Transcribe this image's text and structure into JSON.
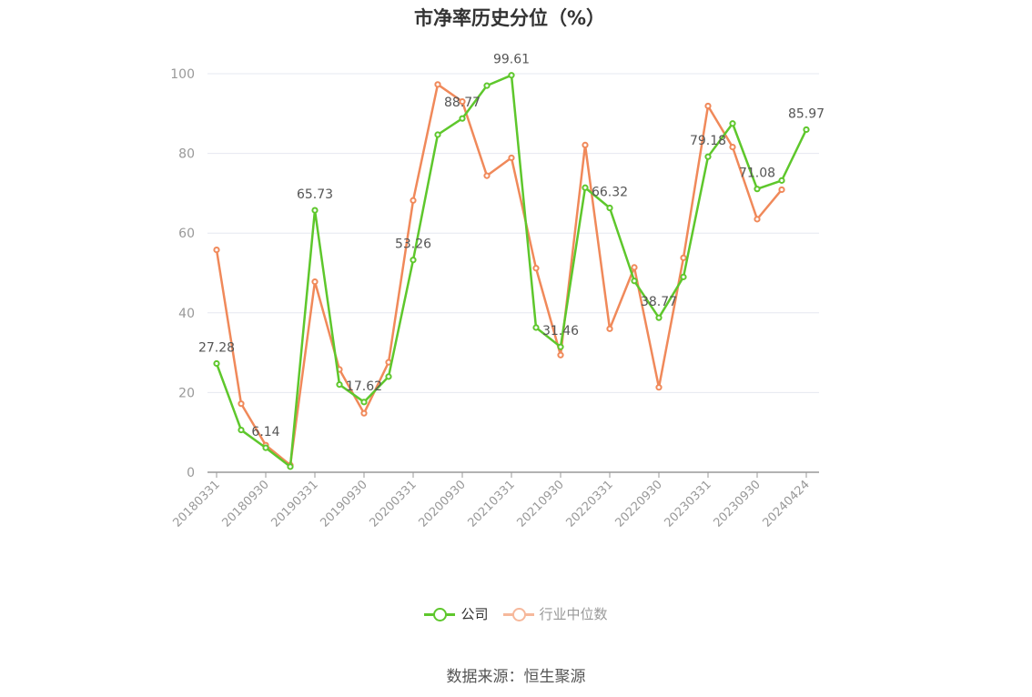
{
  "chart_data": {
    "type": "line",
    "title": "市净率历史分位（%）",
    "source": "数据来源：恒生聚源",
    "ylim": [
      0,
      100
    ],
    "yticks": [
      0,
      20,
      40,
      60,
      80,
      100
    ],
    "x": [
      "20180331",
      "20180630",
      "20180930",
      "20181231",
      "20190331",
      "20190630",
      "20190930",
      "20191231",
      "20200331",
      "20200630",
      "20200930",
      "20201231",
      "20210331",
      "20210630",
      "20210930",
      "20211231",
      "20220331",
      "20220630",
      "20220930",
      "20221231",
      "20230331",
      "20230630",
      "20230930",
      "20231231",
      "20240424"
    ],
    "xtick_labels": [
      "20180331",
      "20180930",
      "20190331",
      "20190930",
      "20200331",
      "20200930",
      "20210331",
      "20210930",
      "20220331",
      "20220930",
      "20230331",
      "20230930",
      "20240424"
    ],
    "grid": true,
    "legend_position": "bottom",
    "series": [
      {
        "name": "公司",
        "color": "#5ec72c",
        "values": [
          27.28,
          10.6,
          6.14,
          1.4,
          65.73,
          22.0,
          17.62,
          24.0,
          53.26,
          84.7,
          88.77,
          97.0,
          99.61,
          36.3,
          31.46,
          71.4,
          66.32,
          48.0,
          38.77,
          49.0,
          79.18,
          87.5,
          71.08,
          73.2,
          85.97
        ],
        "labels": {
          "0": "27.28",
          "2": "6.14",
          "4": "65.73",
          "6": "17.62",
          "8": "53.26",
          "10": "88.77",
          "12": "99.61",
          "14": "31.46",
          "16": "66.32",
          "18": "38.77",
          "20": "79.18",
          "22": "71.08",
          "24": "85.97"
        }
      },
      {
        "name": "行业中位数",
        "color": "#f0895a",
        "values": [
          55.8,
          17.2,
          6.8,
          1.8,
          47.8,
          25.8,
          14.8,
          27.6,
          68.2,
          97.3,
          93.0,
          74.4,
          78.9,
          51.2,
          29.4,
          82.1,
          36.0,
          51.4,
          21.3,
          53.8,
          91.9,
          81.6,
          63.5,
          70.9,
          null
        ]
      }
    ]
  }
}
